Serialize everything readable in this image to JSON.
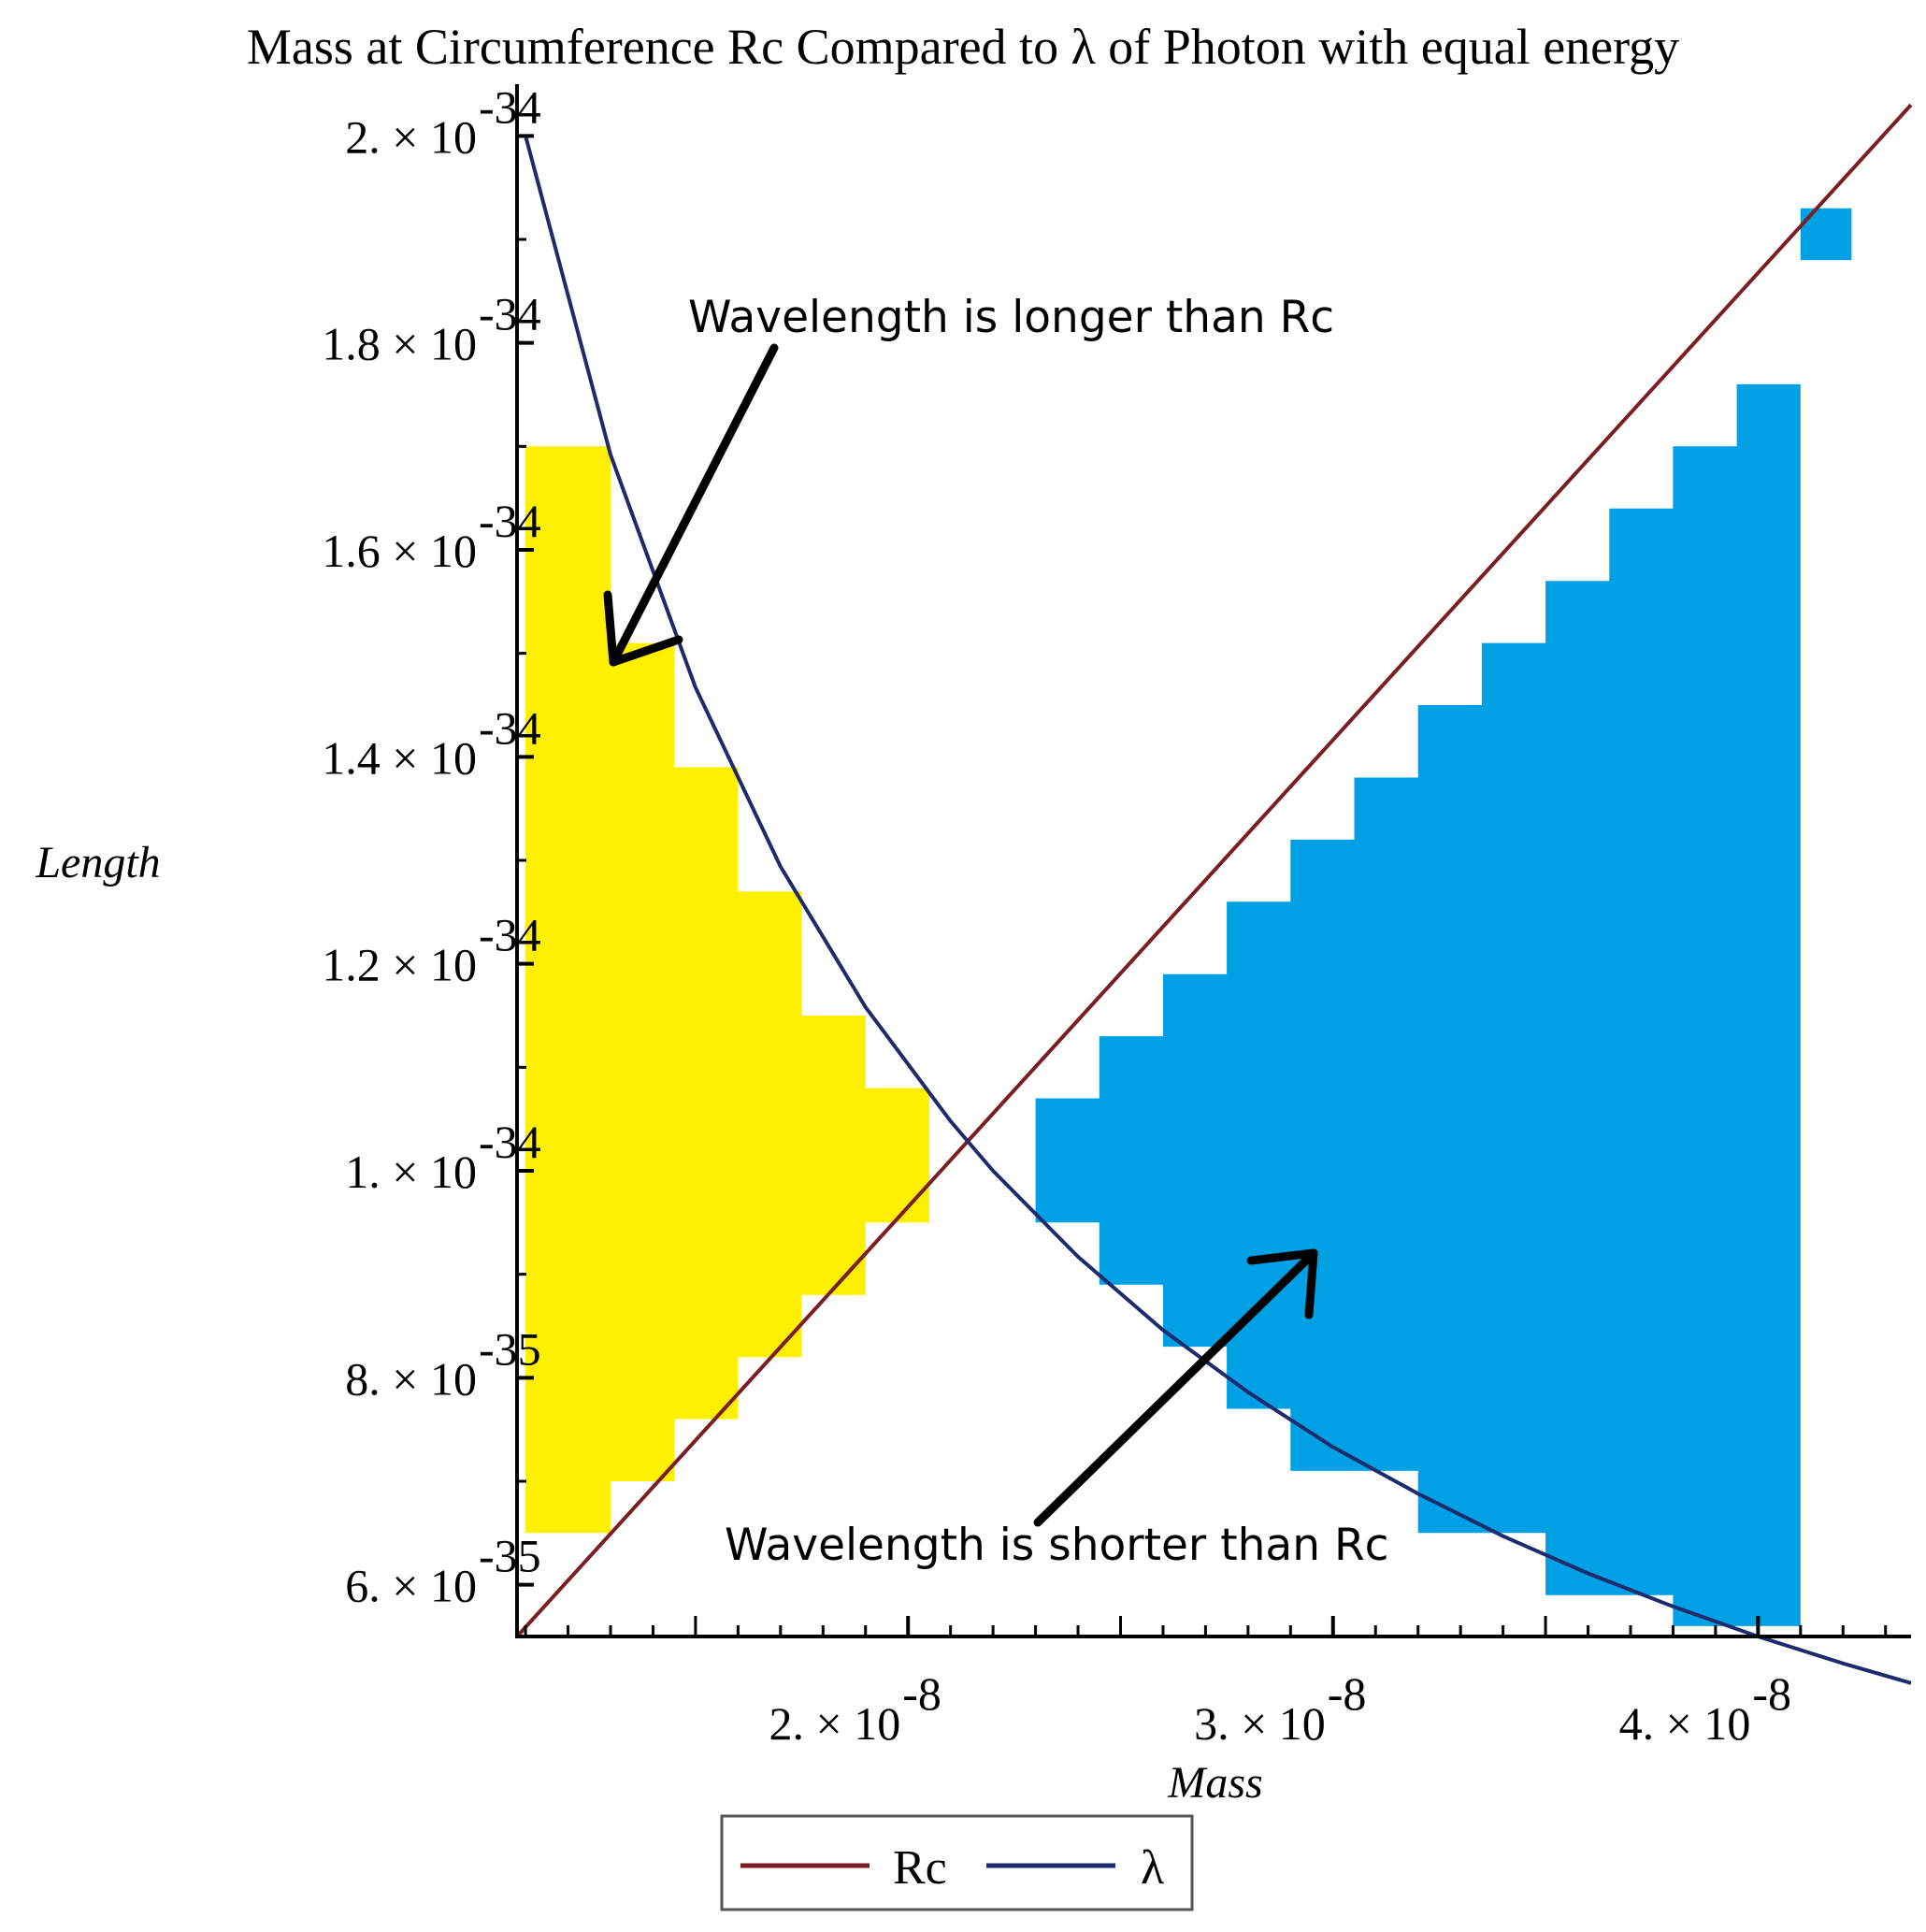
{
  "chart_data": {
    "type": "line",
    "title": "Mass at Circumference Rc Compared to λ of Photon with equal energy",
    "xlabel": "Mass",
    "ylabel": "Length",
    "xlim": [
      1.08e-08,
      4.36e-08
    ],
    "ylim": [
      5.5e-35,
      2.05e-34
    ],
    "x_ticks": [
      {
        "value": 2e-08,
        "mantissa": "2.",
        "exponent": "-8"
      },
      {
        "value": 3e-08,
        "mantissa": "3.",
        "exponent": "-8"
      },
      {
        "value": 4e-08,
        "mantissa": "4.",
        "exponent": "-8"
      }
    ],
    "y_ticks": [
      {
        "value": 6e-35,
        "mantissa": "6.",
        "exponent": "-35"
      },
      {
        "value": 8e-35,
        "mantissa": "8.",
        "exponent": "-35"
      },
      {
        "value": 1e-34,
        "mantissa": "1.",
        "exponent": "-34"
      },
      {
        "value": 1.2e-34,
        "mantissa": "1.2",
        "exponent": "-34"
      },
      {
        "value": 1.4e-34,
        "mantissa": "1.4",
        "exponent": "-34"
      },
      {
        "value": 1.6e-34,
        "mantissa": "1.6",
        "exponent": "-34"
      },
      {
        "value": 1.8e-34,
        "mantissa": "1.8",
        "exponent": "-34"
      },
      {
        "value": 2e-34,
        "mantissa": "2.",
        "exponent": "-34"
      }
    ],
    "times_symbol": "×",
    "times_base": "10",
    "series": [
      {
        "name": "Rc",
        "color": "#7a1e22",
        "x": [
          1.08e-08,
          4.36e-08
        ],
        "y": [
          5.5e-35,
          2.03e-34
        ]
      },
      {
        "name": "λ",
        "color": "#1e2a6e",
        "x": [
          1.1e-08,
          1.3e-08,
          1.5e-08,
          1.7e-08,
          1.9e-08,
          2.1e-08,
          2.2e-08,
          2.4e-08,
          2.6e-08,
          2.8e-08,
          3e-08,
          3.2e-08,
          3.4e-08,
          3.6e-08,
          3.8e-08,
          4e-08,
          4.2e-08,
          4.36e-08
        ],
        "y": [
          2e-34,
          1.692e-34,
          1.467e-34,
          1.294e-34,
          1.158e-34,
          1.048e-34,
          1e-34,
          9.17e-35,
          8.46e-35,
          7.86e-35,
          7.33e-35,
          6.88e-35,
          6.47e-35,
          6.11e-35,
          5.79e-35,
          5.5e-35,
          5.24e-35,
          5.05e-35
        ]
      }
    ],
    "shaded_regions": [
      {
        "color": "#ffef00",
        "x": [
          1.1e-08,
          1.3e-08,
          1.3e-08,
          1.45e-08,
          1.45e-08,
          1.6e-08,
          1.6e-08,
          1.75e-08,
          1.75e-08,
          1.9e-08,
          1.9e-08,
          2.05e-08,
          2.05e-08,
          1.9e-08,
          1.9e-08,
          1.75e-08,
          1.75e-08,
          1.6e-08,
          1.6e-08,
          1.45e-08,
          1.45e-08,
          1.3e-08,
          1.3e-08,
          1.1e-08
        ],
        "y": [
          1.7e-34,
          1.7e-34,
          1.51e-34,
          1.51e-34,
          1.39e-34,
          1.39e-34,
          1.27e-34,
          1.27e-34,
          1.15e-34,
          1.15e-34,
          1.08e-34,
          1.08e-34,
          9.5e-35,
          9.5e-35,
          8.8e-35,
          8.8e-35,
          8.2e-35,
          8.2e-35,
          7.6e-35,
          7.6e-35,
          7e-35,
          7e-35,
          6.5e-35,
          6.5e-35
        ]
      },
      {
        "color": "#00a0e4",
        "x": [
          2.3e-08,
          2.45e-08,
          2.45e-08,
          2.6e-08,
          2.6e-08,
          2.75e-08,
          2.75e-08,
          2.9e-08,
          2.9e-08,
          3.05e-08,
          3.05e-08,
          3.2e-08,
          3.2e-08,
          3.35e-08,
          3.35e-08,
          3.5e-08,
          3.5e-08,
          3.65e-08,
          3.65e-08,
          3.8e-08,
          3.8e-08,
          3.95e-08,
          3.95e-08,
          4.1e-08,
          4.1e-08,
          4.22e-08,
          4.22e-08,
          4.1e-08,
          4.1e-08,
          3.8e-08,
          3.8e-08,
          3.5e-08,
          3.5e-08,
          3.2e-08,
          3.2e-08,
          2.9e-08,
          2.9e-08,
          2.75e-08,
          2.75e-08,
          2.6e-08,
          2.6e-08,
          2.45e-08,
          2.45e-08,
          2.3e-08
        ],
        "y": [
          1.07e-34,
          1.07e-34,
          1.13e-34,
          1.13e-34,
          1.19e-34,
          1.19e-34,
          1.26e-34,
          1.26e-34,
          1.32e-34,
          1.32e-34,
          1.38e-34,
          1.38e-34,
          1.45e-34,
          1.45e-34,
          1.51e-34,
          1.51e-34,
          1.57e-34,
          1.57e-34,
          1.64e-34,
          1.64e-34,
          1.7e-34,
          1.7e-34,
          1.76e-34,
          1.76e-34,
          1.88e-34,
          1.88e-34,
          1.93e-34,
          1.93e-34,
          5.6e-35,
          5.6e-35,
          5.9e-35,
          5.9e-35,
          6.5e-35,
          6.5e-35,
          7.1e-35,
          7.1e-35,
          7.7e-35,
          7.7e-35,
          8.3e-35,
          8.3e-35,
          8.9e-35,
          8.9e-35,
          9.5e-35,
          9.5e-35
        ]
      }
    ],
    "annotations": [
      {
        "text": "Wavelength is longer than Rc",
        "arrow": true
      },
      {
        "text": "Wavelength is shorter than Rc",
        "arrow": true
      }
    ],
    "legend_position": "bottom",
    "grid": false
  }
}
